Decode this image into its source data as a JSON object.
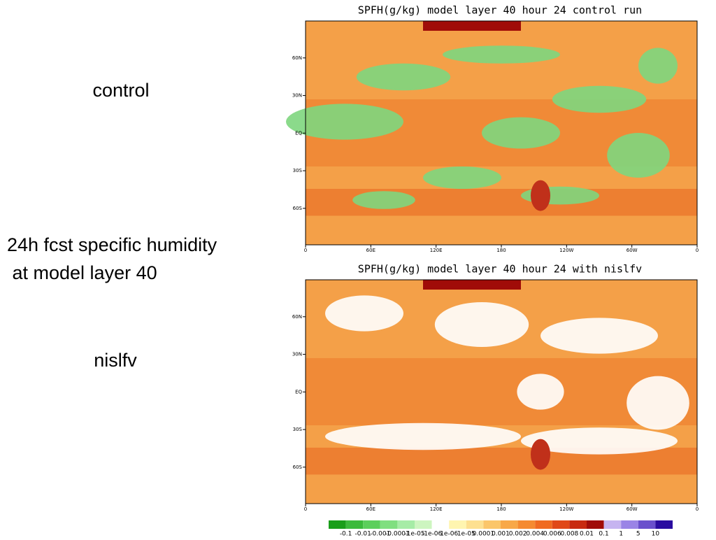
{
  "slide": {
    "label_control": "control",
    "label_desc_1": "24h fcst specific humidity",
    "label_desc_2": " at model layer 40",
    "label_nislfv": "nislfv"
  },
  "maps": [
    {
      "title": "SPFH(g/kg) model layer 40 hour 24 control run",
      "lat_labels": [
        "60N",
        "30N",
        "EQ",
        "30S",
        "60S"
      ],
      "lon_labels": [
        "0",
        "60E",
        "120E",
        "180",
        "120W",
        "60W",
        "0"
      ]
    },
    {
      "title": "SPFH(g/kg) model layer 40 hour 24 with nislfv",
      "lat_labels": [
        "60N",
        "30N",
        "EQ",
        "30S",
        "60S"
      ],
      "lon_labels": [
        "0",
        "60E",
        "120E",
        "180",
        "120W",
        "60W",
        "0"
      ]
    }
  ],
  "colorbar": {
    "colors": [
      "#1a9e1a",
      "#3cba3c",
      "#5ccf5c",
      "#80df80",
      "#a6eca6",
      "#cdf5c0",
      "#ffffff",
      "#fff5b0",
      "#fde090",
      "#fbc66a",
      "#f8a848",
      "#f58a30",
      "#f06a20",
      "#e04818",
      "#c82a10",
      "#a00c08",
      "#c6b4f0",
      "#9a84e6",
      "#6a50cc",
      "#2a0ca0"
    ],
    "labels": [
      "-0.1",
      "-0.01",
      "-0.001",
      "-0.0001",
      "-1e-05",
      "-1e-06",
      "1e-06",
      "1e-05",
      "0.0001",
      "0.001",
      "0.002",
      "0.004",
      "0.006",
      "0.008",
      "0.01",
      "0.1",
      "1",
      "5",
      "10"
    ]
  }
}
